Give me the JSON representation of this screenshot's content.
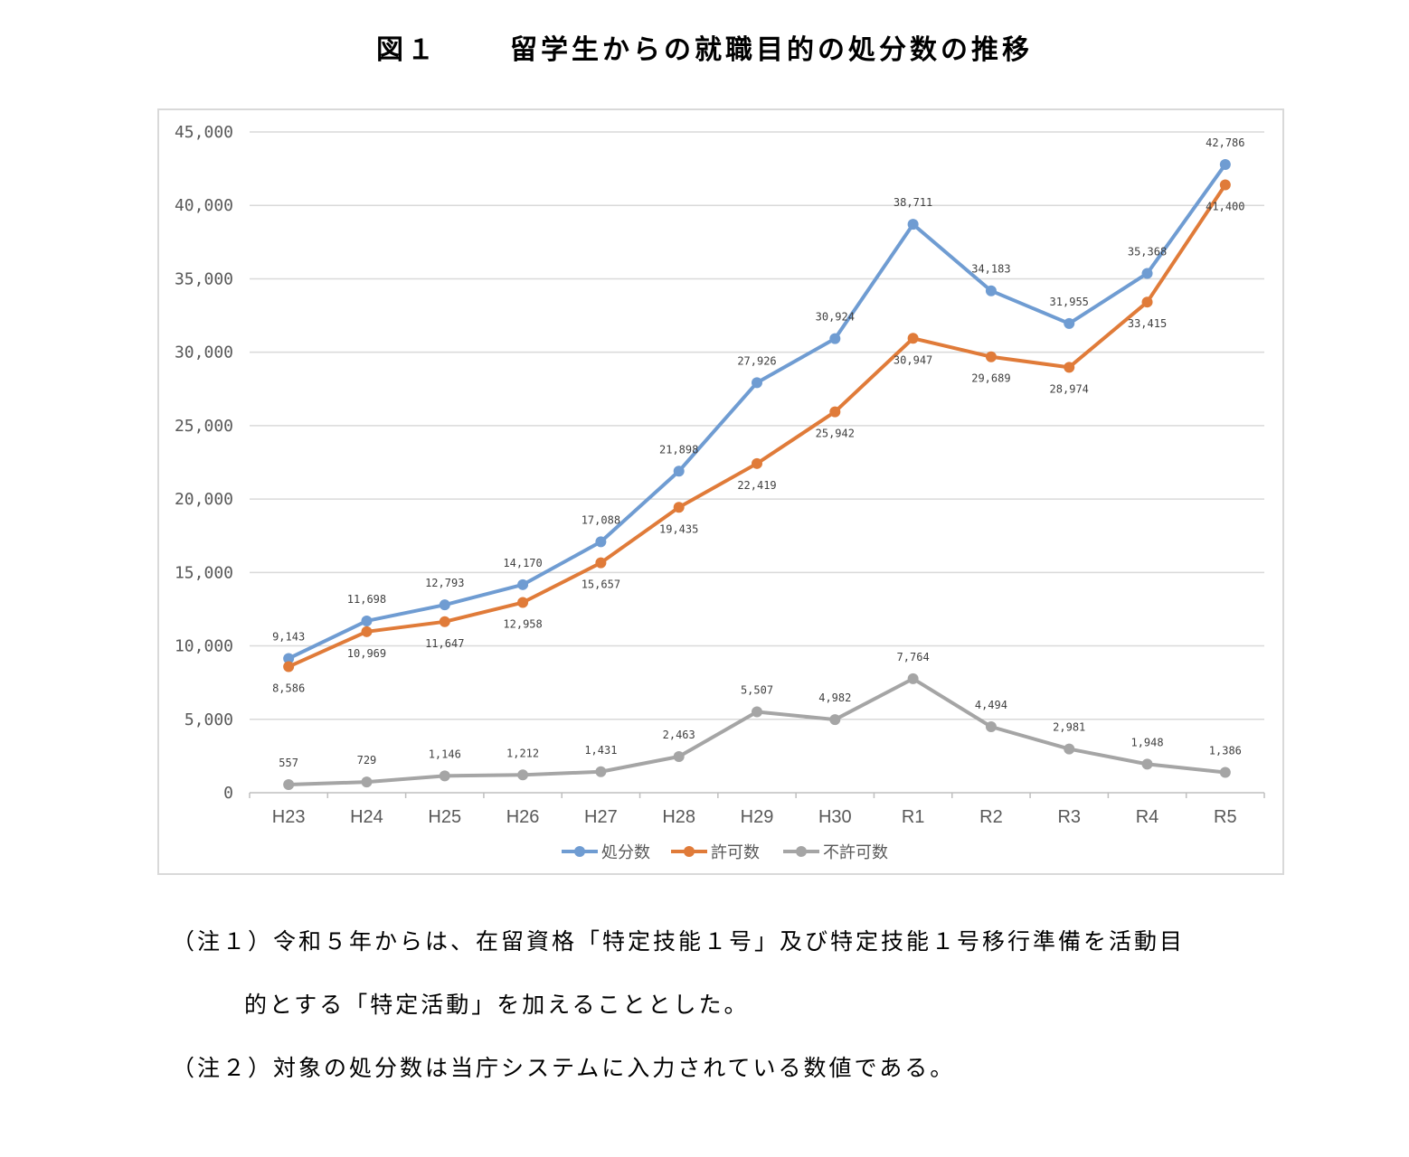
{
  "title": {
    "number": "図１",
    "text": "留学生からの就職目的の処分数の推移"
  },
  "chart_data": {
    "type": "line",
    "categories": [
      "H23",
      "H24",
      "H25",
      "H26",
      "H27",
      "H28",
      "H29",
      "H30",
      "R1",
      "R2",
      "R3",
      "R4",
      "R5"
    ],
    "series": [
      {
        "name": "処分数",
        "color": "#6f9cd2",
        "values": [
          9143,
          11698,
          12793,
          14170,
          17088,
          21898,
          27926,
          30924,
          38711,
          34183,
          31955,
          35368,
          42786
        ],
        "labels": [
          "9,143",
          "11,698",
          "12,793",
          "14,170",
          "17,088",
          "21,898",
          "27,926",
          "30,924",
          "38,711",
          "34,183",
          "31,955",
          "35,368",
          "42,786"
        ]
      },
      {
        "name": "許可数",
        "color": "#e07b39",
        "values": [
          8586,
          10969,
          11647,
          12958,
          15657,
          19435,
          22419,
          25942,
          30947,
          29689,
          28974,
          33415,
          41400
        ],
        "labels": [
          "8,586",
          "10,969",
          "11,647",
          "12,958",
          "15,657",
          "19,435",
          "22,419",
          "25,942",
          "30,947",
          "29,689",
          "28,974",
          "33,415",
          "41,400"
        ]
      },
      {
        "name": "不許可数",
        "color": "#a5a5a5",
        "values": [
          557,
          729,
          1146,
          1212,
          1431,
          2463,
          5507,
          4982,
          7764,
          4494,
          2981,
          1948,
          1386
        ],
        "labels": [
          "557",
          "729",
          "1,146",
          "1,212",
          "1,431",
          "2,463",
          "5,507",
          "4,982",
          "7,764",
          "4,494",
          "2,981",
          "1,948",
          "1,386"
        ]
      }
    ],
    "yticks": [
      "0",
      "5,000",
      "10,000",
      "15,000",
      "20,000",
      "25,000",
      "30,000",
      "35,000",
      "40,000",
      "45,000"
    ],
    "ylim": [
      0,
      45000
    ],
    "grid": true,
    "legend_position": "bottom"
  },
  "notes": [
    "（注１）令和５年からは、在留資格「特定技能１号」及び特定技能１号移行準備を活動目",
    "的とする「特定活動」を加えることとした。",
    "（注２）対象の処分数は当庁システムに入力されている数値である。"
  ]
}
